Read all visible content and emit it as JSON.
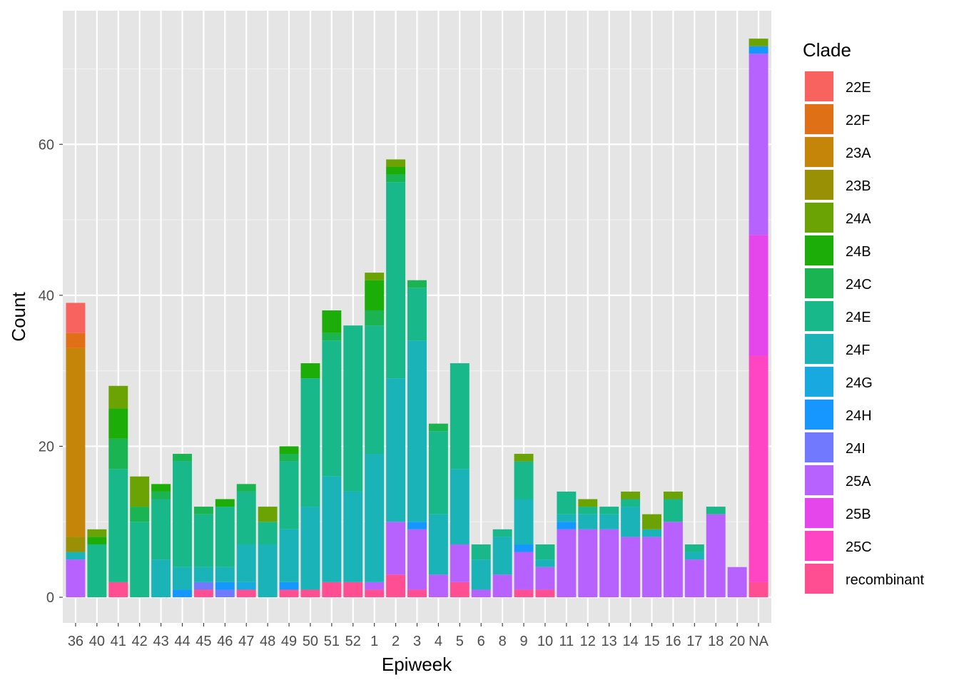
{
  "chart_data": {
    "type": "bar",
    "stacked": true,
    "title": "",
    "xlabel": "Epiweek",
    "ylabel": "Count",
    "ylim": [
      -3.4,
      77.7
    ],
    "yticks": [
      0,
      20,
      40,
      60
    ],
    "grid": true,
    "legend": {
      "title": "Clade",
      "placement": "right"
    },
    "categories": [
      "36",
      "40",
      "41",
      "42",
      "43",
      "44",
      "45",
      "46",
      "47",
      "48",
      "49",
      "50",
      "51",
      "52",
      "1",
      "2",
      "3",
      "4",
      "5",
      "6",
      "8",
      "9",
      "10",
      "11",
      "12",
      "13",
      "14",
      "15",
      "16",
      "17",
      "18",
      "20",
      "NA"
    ],
    "series": [
      {
        "name": "22E",
        "color": "#F8625F",
        "values": {
          "36": 4
        }
      },
      {
        "name": "22F",
        "color": "#E07015",
        "values": {
          "36": 2
        }
      },
      {
        "name": "23A",
        "color": "#C48508",
        "values": {
          "36": 25
        }
      },
      {
        "name": "23B",
        "color": "#9A9006",
        "values": {
          "36": 2
        }
      },
      {
        "name": "24A",
        "color": "#6BA304",
        "values": {
          "40": 1,
          "41": 3,
          "42": 4,
          "48": 2,
          "1": 1,
          "2": 1,
          "9": 1,
          "12": 1,
          "14": 1,
          "15": 2,
          "16": 1,
          "NA": 1
        }
      },
      {
        "name": "24B",
        "color": "#1DAD08",
        "values": {
          "40": 1,
          "41": 4,
          "43": 1,
          "46": 1,
          "49": 1,
          "50": 2,
          "51": 3,
          "1": 4,
          "2": 1
        }
      },
      {
        "name": "24C",
        "color": "#1BB452",
        "values": {
          "41": 4,
          "42": 2,
          "43": 1,
          "44": 1,
          "45": 1,
          "47": 1,
          "49": 1,
          "51": 1,
          "1": 2,
          "2": 1,
          "3": 1,
          "4": 1
        }
      },
      {
        "name": "24E",
        "color": "#18B88A",
        "values": {
          "40": 7,
          "41": 15,
          "42": 10,
          "43": 8,
          "44": 14,
          "45": 7,
          "46": 8,
          "47": 7,
          "48": 3,
          "49": 9,
          "50": 17,
          "51": 18,
          "52": 22,
          "1": 17,
          "2": 26,
          "3": 7,
          "4": 11,
          "5": 14,
          "6": 2,
          "8": 1,
          "9": 5,
          "10": 2,
          "11": 3,
          "12": 1,
          "13": 1,
          "14": 1,
          "16": 3,
          "17": 1,
          "18": 1
        }
      },
      {
        "name": "24F",
        "color": "#19B3B8",
        "values": {
          "36": 1,
          "43": 5,
          "44": 3,
          "45": 2,
          "46": 2,
          "47": 5,
          "48": 7,
          "49": 7,
          "50": 11,
          "51": 14,
          "52": 12,
          "1": 17,
          "2": 19,
          "3": 24,
          "4": 8,
          "5": 10,
          "6": 4,
          "8": 5,
          "9": 6,
          "10": 1,
          "11": 1,
          "12": 2,
          "13": 2,
          "14": 4,
          "15": 1,
          "17": 1
        }
      },
      {
        "name": "24G",
        "color": "#17A9DF",
        "values": {
          "47": 1
        }
      },
      {
        "name": "24H",
        "color": "#1597FF",
        "values": {
          "44": 1,
          "46": 1,
          "49": 1,
          "3": 1,
          "9": 1,
          "11": 1,
          "NA": 1
        }
      },
      {
        "name": "24I",
        "color": "#7179FF",
        "values": {
          "45": 1,
          "46": 1
        }
      },
      {
        "name": "25A",
        "color": "#B762FF",
        "values": {
          "36": 5,
          "1": 1,
          "2": 7,
          "3": 8,
          "4": 3,
          "5": 5,
          "6": 1,
          "8": 3,
          "9": 5,
          "10": 3,
          "11": 9,
          "12": 9,
          "13": 9,
          "14": 8,
          "15": 8,
          "16": 10,
          "17": 5,
          "18": 11,
          "20": 4,
          "NA": 24
        }
      },
      {
        "name": "25B",
        "color": "#E446EC",
        "values": {
          "NA": 16
        }
      },
      {
        "name": "25C",
        "color": "#FF45C4",
        "values": {
          "NA": 30
        }
      },
      {
        "name": "recombinant",
        "color": "#FF4F92",
        "values": {
          "41": 2,
          "45": 1,
          "47": 1,
          "49": 1,
          "50": 1,
          "51": 2,
          "52": 2,
          "1": 1,
          "2": 3,
          "3": 1,
          "5": 2,
          "9": 1,
          "10": 1,
          "NA": 2
        }
      }
    ]
  }
}
